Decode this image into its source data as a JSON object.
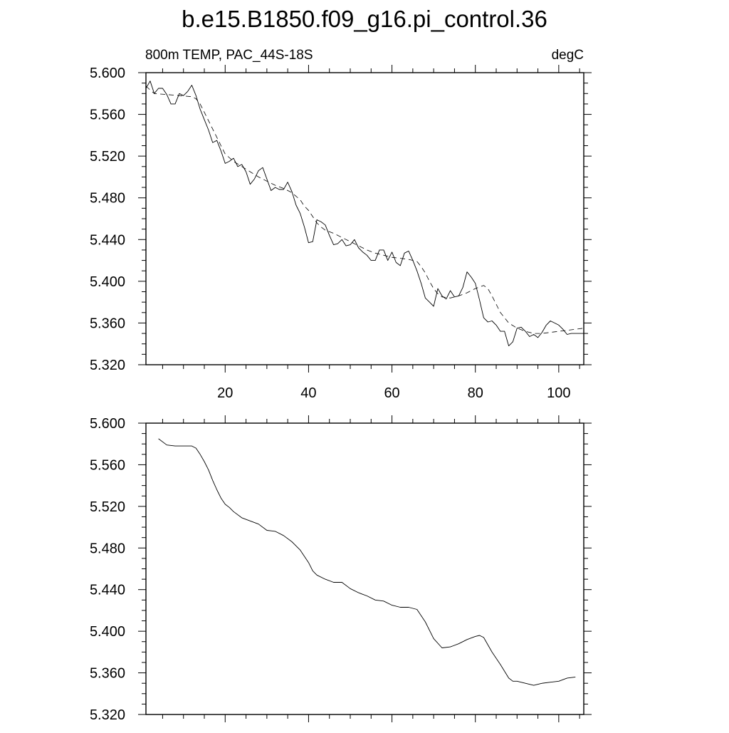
{
  "title": "b.e15.B1850.f09_g16.pi_control.36",
  "chart_data": [
    {
      "type": "line",
      "left_label": "800m TEMP, PAC_44S-18S",
      "right_label": "degC",
      "xlim": [
        1,
        106
      ],
      "ylim": [
        5.32,
        5.6
      ],
      "xticks": [
        20,
        40,
        60,
        80,
        100
      ],
      "xtick_labels": [
        "20",
        "40",
        "60",
        "80",
        "100"
      ],
      "yticks": [
        5.32,
        5.36,
        5.4,
        5.44,
        5.48,
        5.52,
        5.56,
        5.6
      ],
      "ytick_labels": [
        "5.320",
        "5.360",
        "5.400",
        "5.440",
        "5.480",
        "5.520",
        "5.560",
        "5.600"
      ],
      "series": [
        {
          "style": "solid",
          "x": [
            1,
            2,
            3,
            4,
            5,
            6,
            7,
            8,
            9,
            10,
            11,
            12,
            13,
            14,
            15,
            16,
            17,
            18,
            19,
            20,
            21,
            22,
            23,
            24,
            25,
            26,
            27,
            28,
            29,
            30,
            31,
            32,
            33,
            34,
            35,
            36,
            37,
            38,
            39,
            40,
            41,
            42,
            43,
            44,
            45,
            46,
            47,
            48,
            49,
            50,
            51,
            52,
            53,
            54,
            55,
            56,
            57,
            58,
            59,
            60,
            61,
            62,
            63,
            64,
            65,
            66,
            67,
            68,
            69,
            70,
            71,
            72,
            73,
            74,
            75,
            76,
            77,
            78,
            79,
            80,
            81,
            82,
            83,
            84,
            85,
            86,
            87,
            88,
            89,
            90,
            91,
            92,
            93,
            94,
            95,
            96,
            97,
            98,
            99,
            100,
            101,
            102,
            103,
            104,
            105,
            106
          ],
          "y": [
            5.585,
            5.592,
            5.58,
            5.585,
            5.585,
            5.579,
            5.57,
            5.57,
            5.58,
            5.578,
            5.582,
            5.588,
            5.578,
            5.565,
            5.555,
            5.545,
            5.533,
            5.535,
            5.525,
            5.513,
            5.515,
            5.518,
            5.51,
            5.512,
            5.505,
            5.493,
            5.498,
            5.506,
            5.509,
            5.498,
            5.487,
            5.49,
            5.488,
            5.488,
            5.495,
            5.486,
            5.473,
            5.465,
            5.452,
            5.437,
            5.438,
            5.459,
            5.457,
            5.454,
            5.444,
            5.435,
            5.436,
            5.44,
            5.434,
            5.435,
            5.44,
            5.432,
            5.428,
            5.425,
            5.42,
            5.42,
            5.43,
            5.43,
            5.42,
            5.428,
            5.418,
            5.415,
            5.427,
            5.429,
            5.42,
            5.41,
            5.398,
            5.384,
            5.38,
            5.376,
            5.393,
            5.386,
            5.383,
            5.391,
            5.385,
            5.386,
            5.394,
            5.409,
            5.404,
            5.398,
            5.382,
            5.365,
            5.361,
            5.362,
            5.358,
            5.352,
            5.352,
            5.338,
            5.342,
            5.355,
            5.356,
            5.352,
            5.347,
            5.349,
            5.346,
            5.351,
            5.358,
            5.362,
            5.36,
            5.358,
            5.354,
            5.349,
            5.35,
            5.35,
            5.35,
            5.35
          ]
        },
        {
          "style": "dashed",
          "x": [
            1,
            3,
            6,
            9,
            12,
            13,
            14,
            15,
            16,
            17,
            18,
            19,
            20,
            22,
            24,
            26,
            28,
            30,
            32,
            34,
            36,
            38,
            39,
            40,
            41,
            42,
            43,
            44,
            46,
            48,
            50,
            52,
            54,
            56,
            58,
            60,
            62,
            64,
            66,
            67,
            68,
            69,
            70,
            71,
            72,
            74,
            76,
            78,
            80,
            82,
            83,
            84,
            85,
            86,
            88,
            90,
            92,
            94,
            96,
            98,
            100,
            102,
            104,
            106
          ],
          "y": [
            5.587,
            5.58,
            5.579,
            5.578,
            5.577,
            5.575,
            5.57,
            5.562,
            5.554,
            5.546,
            5.538,
            5.53,
            5.522,
            5.515,
            5.51,
            5.505,
            5.5,
            5.496,
            5.492,
            5.489,
            5.485,
            5.478,
            5.472,
            5.468,
            5.462,
            5.456,
            5.452,
            5.449,
            5.446,
            5.442,
            5.438,
            5.434,
            5.43,
            5.427,
            5.425,
            5.423,
            5.422,
            5.421,
            5.419,
            5.414,
            5.408,
            5.4,
            5.393,
            5.388,
            5.385,
            5.384,
            5.386,
            5.389,
            5.393,
            5.396,
            5.393,
            5.386,
            5.378,
            5.37,
            5.36,
            5.355,
            5.352,
            5.35,
            5.35,
            5.351,
            5.352,
            5.353,
            5.354,
            5.355
          ]
        }
      ]
    },
    {
      "type": "line",
      "xlim": [
        1,
        106
      ],
      "ylim": [
        5.32,
        5.6
      ],
      "xticks": [
        20,
        40,
        60,
        80,
        100
      ],
      "yticks": [
        5.32,
        5.36,
        5.4,
        5.44,
        5.48,
        5.52,
        5.56,
        5.6
      ],
      "ytick_labels": [
        "5.320",
        "5.360",
        "5.400",
        "5.440",
        "5.480",
        "5.520",
        "5.560",
        "5.600"
      ],
      "series": [
        {
          "style": "solid",
          "x": [
            4,
            6,
            8,
            10,
            12,
            13,
            14,
            15,
            16,
            17,
            18,
            19,
            20,
            21,
            22,
            24,
            26,
            28,
            30,
            32,
            34,
            36,
            38,
            40,
            41,
            42,
            44,
            46,
            48,
            50,
            52,
            54,
            56,
            58,
            60,
            62,
            64,
            66,
            68,
            70,
            72,
            74,
            76,
            78,
            80,
            81,
            82,
            84,
            86,
            88,
            89,
            90,
            92,
            94,
            96,
            98,
            100,
            102,
            104
          ],
          "y": [
            5.585,
            5.579,
            5.578,
            5.578,
            5.578,
            5.576,
            5.57,
            5.563,
            5.555,
            5.545,
            5.536,
            5.528,
            5.522,
            5.519,
            5.515,
            5.509,
            5.506,
            5.503,
            5.497,
            5.496,
            5.492,
            5.486,
            5.478,
            5.466,
            5.458,
            5.454,
            5.45,
            5.447,
            5.447,
            5.441,
            5.437,
            5.434,
            5.43,
            5.429,
            5.425,
            5.423,
            5.423,
            5.421,
            5.409,
            5.393,
            5.384,
            5.385,
            5.388,
            5.392,
            5.395,
            5.396,
            5.394,
            5.38,
            5.368,
            5.355,
            5.352,
            5.352,
            5.35,
            5.348,
            5.35,
            5.351,
            5.352,
            5.355,
            5.356
          ]
        }
      ]
    }
  ]
}
